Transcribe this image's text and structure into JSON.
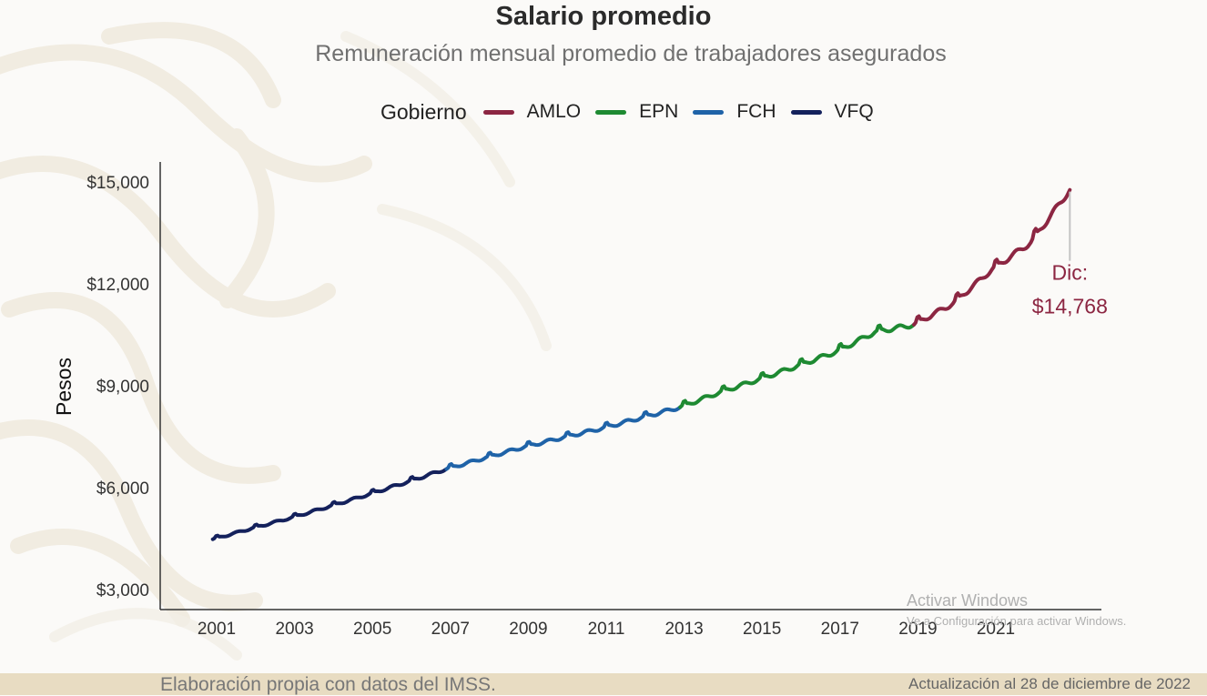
{
  "title": "Salario promedio",
  "subtitle": "Remuneración mensual promedio de trabajadores asegurados",
  "legend": {
    "title": "Gobierno",
    "items": [
      {
        "label": "AMLO",
        "color": "#8c2642"
      },
      {
        "label": "EPN",
        "color": "#1e8a32"
      },
      {
        "label": "FCH",
        "color": "#1f63a8"
      },
      {
        "label": "VFQ",
        "color": "#14215c"
      }
    ]
  },
  "annotation": {
    "line1": "Dic:",
    "line2": "$14,768",
    "color": "#8c2642"
  },
  "footer": {
    "source": "Elaboración propia con datos del IMSS.",
    "update": "Actualización al 28 de diciembre de 2022"
  },
  "watermark": {
    "line1": "Activar Windows",
    "line2": "Ve a Configuración para activar Windows."
  },
  "chart_data": {
    "type": "line",
    "title": "Salario promedio",
    "subtitle": "Remuneración mensual promedio de trabajadores asegurados",
    "xlabel": "",
    "ylabel": "Pesos",
    "x_unit": "year",
    "xlim": [
      2000,
      2023.5
    ],
    "ylim": [
      2600,
      15600
    ],
    "x_ticks": [
      "2001",
      "2003",
      "2005",
      "2007",
      "2009",
      "2011",
      "2013",
      "2015",
      "2017",
      "2019",
      "2021"
    ],
    "y_ticks": [
      "$3,000",
      "$6,000",
      "$9,000",
      "$12,000",
      "$15,000"
    ],
    "y_tick_values": [
      3000,
      6000,
      9000,
      12000,
      15000
    ],
    "grid": false,
    "legend_position": "top",
    "series": [
      {
        "name": "VFQ",
        "color": "#14215c",
        "points": [
          [
            2000.9,
            4480
          ],
          [
            2001.9,
            4800
          ],
          [
            2002.9,
            5110
          ],
          [
            2003.9,
            5450
          ],
          [
            2004.9,
            5800
          ],
          [
            2005.9,
            6170
          ],
          [
            2006.9,
            6550
          ]
        ]
      },
      {
        "name": "FCH",
        "color": "#1f63a8",
        "points": [
          [
            2006.9,
            6550
          ],
          [
            2007.9,
            6880
          ],
          [
            2008.9,
            7200
          ],
          [
            2009.9,
            7480
          ],
          [
            2010.9,
            7750
          ],
          [
            2011.9,
            8060
          ],
          [
            2012.9,
            8370
          ]
        ]
      },
      {
        "name": "EPN",
        "color": "#1e8a32",
        "points": [
          [
            2012.9,
            8370
          ],
          [
            2013.9,
            8800
          ],
          [
            2014.9,
            9180
          ],
          [
            2015.9,
            9580
          ],
          [
            2016.9,
            10000
          ],
          [
            2017.9,
            10580
          ],
          [
            2018.9,
            10800
          ]
        ]
      },
      {
        "name": "AMLO",
        "color": "#8c2642",
        "points": [
          [
            2018.9,
            10800
          ],
          [
            2019.9,
            11420
          ],
          [
            2020.9,
            12420
          ],
          [
            2021.9,
            13220
          ],
          [
            2022.9,
            14768
          ]
        ]
      }
    ],
    "annotation": {
      "label": "Dic: $14,768",
      "x": 2022.9,
      "y": 14768
    }
  }
}
